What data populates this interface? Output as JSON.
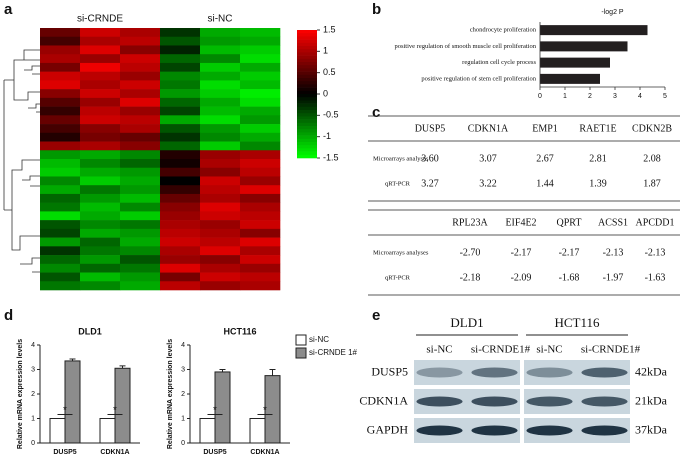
{
  "panel_labels": [
    "a",
    "b",
    "c",
    "d",
    "e"
  ],
  "chart_data": [
    {
      "type": "heatmap",
      "column_groups": [
        "si-CRNDE",
        "si-NC"
      ],
      "zlim": [
        -1.5,
        1.5
      ],
      "zticks": [
        1.5,
        1,
        0.5,
        0,
        -0.5,
        -1,
        -1.5
      ],
      "colors": [
        "#00ff00",
        "#000000",
        "#ff0000"
      ],
      "values": [
        [
          0.6,
          1.2,
          1.0,
          -0.3,
          -1.0,
          -1.1
        ],
        [
          0.4,
          1.0,
          1.1,
          -0.5,
          -0.9,
          -1.0
        ],
        [
          0.9,
          1.3,
          0.8,
          -0.2,
          -1.1,
          -1.2
        ],
        [
          1.0,
          0.9,
          1.2,
          -0.6,
          -0.8,
          -1.3
        ],
        [
          0.7,
          1.4,
          1.1,
          -0.4,
          -1.2,
          -1.0
        ],
        [
          1.2,
          1.1,
          0.9,
          -0.8,
          -1.0,
          -1.2
        ],
        [
          1.3,
          1.0,
          1.2,
          -0.7,
          -1.3,
          -1.1
        ],
        [
          0.8,
          1.2,
          1.0,
          -0.9,
          -1.2,
          -1.4
        ],
        [
          0.5,
          0.9,
          1.3,
          -0.6,
          -1.0,
          -1.3
        ],
        [
          0.3,
          1.1,
          0.9,
          -0.4,
          -1.1,
          -1.0
        ],
        [
          0.6,
          1.2,
          1.1,
          -1.0,
          -1.3,
          -0.9
        ],
        [
          0.4,
          0.8,
          1.0,
          -0.5,
          -0.9,
          -1.2
        ],
        [
          0.2,
          0.7,
          0.6,
          -0.3,
          -0.8,
          -1.0
        ],
        [
          0.9,
          1.0,
          0.8,
          -0.6,
          -1.2,
          -0.8
        ],
        [
          -0.9,
          -1.0,
          -0.8,
          0.2,
          0.9,
          1.0
        ],
        [
          -1.1,
          -0.8,
          -0.6,
          0.1,
          1.0,
          1.2
        ],
        [
          -1.2,
          -1.0,
          -0.9,
          0.4,
          0.8,
          1.1
        ],
        [
          -0.8,
          -1.2,
          -1.0,
          0.0,
          1.2,
          0.9
        ],
        [
          -1.0,
          -0.7,
          -0.9,
          0.3,
          1.1,
          1.3
        ],
        [
          -0.6,
          -0.9,
          -1.1,
          0.6,
          1.0,
          0.8
        ],
        [
          -0.7,
          -1.1,
          -0.8,
          0.8,
          1.3,
          1.0
        ],
        [
          -1.3,
          -1.0,
          -1.2,
          0.9,
          1.2,
          1.1
        ],
        [
          -0.5,
          -0.8,
          -0.7,
          1.0,
          0.9,
          1.2
        ],
        [
          -0.4,
          -1.0,
          -0.9,
          1.1,
          1.0,
          0.8
        ],
        [
          -0.9,
          -0.6,
          -1.0,
          1.2,
          1.1,
          1.3
        ],
        [
          -0.3,
          -0.7,
          -0.8,
          1.0,
          1.3,
          1.0
        ],
        [
          -0.6,
          -0.9,
          -0.5,
          0.9,
          0.8,
          1.2
        ],
        [
          -0.8,
          -0.6,
          -0.7,
          1.3,
          1.0,
          0.9
        ],
        [
          -0.5,
          -1.1,
          -0.9,
          0.7,
          1.2,
          1.1
        ],
        [
          -0.7,
          -0.8,
          -1.0,
          1.1,
          0.9,
          1.0
        ]
      ]
    },
    {
      "type": "hbar",
      "title": "-log2 P",
      "color": "#231f20",
      "categories": [
        "chondrocyte proliferation",
        "positive regulation of smooth muscle cell proliferation",
        "regulation cell cycle process",
        "positive regulation of stem cell proliferation"
      ],
      "values": [
        4.3,
        3.5,
        2.8,
        2.4
      ],
      "xlim": [
        0,
        5
      ],
      "xticks": [
        0,
        1,
        2,
        3,
        4,
        5
      ]
    },
    {
      "type": "bar",
      "title": "DLD1",
      "ylabel": "Relative mRNA expression levels",
      "categories": [
        "DUSP5",
        "CDKN1A"
      ],
      "annotations": [
        "*",
        "*"
      ],
      "ylim": [
        0,
        4
      ],
      "yticks": [
        0,
        1,
        2,
        3,
        4
      ],
      "series": [
        {
          "color": "#ffffff",
          "values": [
            1,
            1
          ],
          "errors": [
            0,
            0
          ]
        },
        {
          "color": "#8c8c8c",
          "values": [
            3.35,
            3.05
          ],
          "errors": [
            0.08,
            0.1
          ]
        }
      ]
    },
    {
      "type": "bar",
      "title": "HCT116",
      "ylabel": "Relative mRNA expression levels",
      "categories": [
        "DUSP5",
        "CDKN1A"
      ],
      "annotations": [
        "*",
        "*"
      ],
      "ylim": [
        0,
        4
      ],
      "yticks": [
        0,
        1,
        2,
        3,
        4
      ],
      "series": [
        {
          "name": "si-NC",
          "color": "#ffffff",
          "values": [
            1,
            1
          ],
          "errors": [
            0,
            0
          ]
        },
        {
          "name": "si-CRNDE 1#",
          "color": "#8c8c8c",
          "values": [
            2.9,
            2.75
          ],
          "errors": [
            0.1,
            0.25
          ]
        }
      ]
    }
  ],
  "tables": [
    {
      "columns": [
        "DUSP5",
        "CDKN1A",
        "EMP1",
        "RAET1E",
        "CDKN2B"
      ],
      "rows": [
        [
          "Microarrays analyses",
          "3.60",
          "3.07",
          "2.67",
          "2.81",
          "2.08"
        ],
        [
          "qRT-PCR",
          "3.27",
          "3.22",
          "1.44",
          "1.39",
          "1.87"
        ]
      ]
    },
    {
      "columns": [
        "RPL23A",
        "EIF4E2",
        "QPRT",
        "ACSS1",
        "APCDD1"
      ],
      "rows": [
        [
          "Microarrays analyses",
          "-2.70",
          "-2.17",
          "-2.17",
          "-2.13",
          "-2.13"
        ],
        [
          "qRT-PCR",
          "-2.18",
          "-2.09",
          "-1.68",
          "-1.97",
          "-1.63"
        ]
      ]
    }
  ],
  "blot": {
    "groups": [
      "DLD1",
      "HCT116"
    ],
    "lanes": [
      "si-NC",
      "si-CRNDE1#",
      "si-NC",
      "si-CRNDE1#"
    ],
    "rows": [
      {
        "protein": "DUSP5",
        "size": "42kDa"
      },
      {
        "protein": "CDKN1A",
        "size": "21kDa"
      },
      {
        "protein": "GAPDH",
        "size": "37kDa"
      }
    ]
  }
}
